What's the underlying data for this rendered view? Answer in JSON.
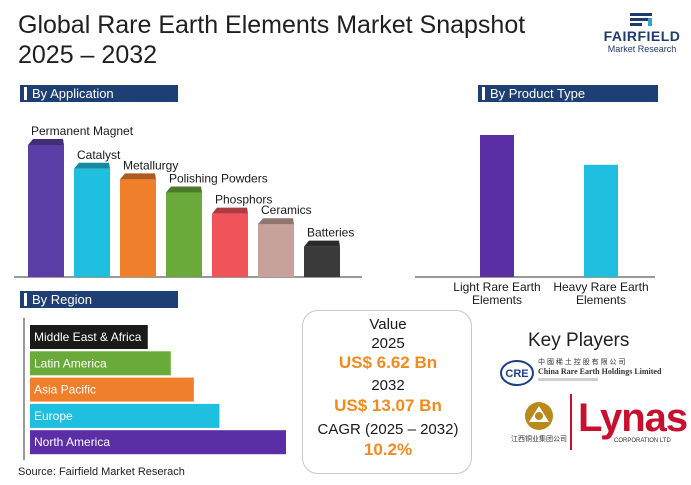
{
  "header": {
    "title_line1": "Global Rare Earth Elements Market Snapshot",
    "title_line2": "2025 – 2032",
    "logo_word": "FAIRFIELD",
    "logo_sub": "Market Research"
  },
  "sections": {
    "application": "By Application",
    "product_type": "By Product Type",
    "region": "By Region"
  },
  "chart_data": [
    {
      "type": "bar",
      "title": "By Application",
      "categories": [
        "Permanent Magnet",
        "Catalyst",
        "Metallurgy",
        "Polishing Powders",
        "Phosphors",
        "Ceramics",
        "Batteries"
      ],
      "values": [
        100,
        82,
        74,
        64,
        48,
        40,
        23
      ],
      "colors": [
        "#5a3ea6",
        "#1fbfe0",
        "#f07f2b",
        "#6aaa3a",
        "#f0535a",
        "#c7a19c",
        "#3a3a3a"
      ],
      "ylim": [
        0,
        100
      ]
    },
    {
      "type": "bar",
      "title": "By Product Type",
      "categories": [
        "Light Rare Earth Elements",
        "Heavy Rare Earth Elements"
      ],
      "values": [
        100,
        79
      ],
      "colors": [
        "#5b2ea6",
        "#1fbfe0"
      ],
      "ylim": [
        0,
        100
      ]
    },
    {
      "type": "bar",
      "orientation": "horizontal",
      "title": "By Region",
      "categories": [
        "Middle East & Africa",
        "Latin America",
        "Asia Pacific",
        "Europe",
        "North America"
      ],
      "values": [
        46,
        55,
        64,
        74,
        100
      ],
      "colors": [
        "#1a1a1a",
        "#6aaa3a",
        "#f07f2b",
        "#1fbfe0",
        "#5b2ea6"
      ],
      "ylim": [
        0,
        100
      ]
    }
  ],
  "stats": {
    "value_label": "Value",
    "year1": "2025",
    "value1": "US$ 6.62 Bn",
    "year2": "2032",
    "value2": "US$ 13.07 Bn",
    "cagr_label": "CAGR (2025 – 2032)",
    "cagr_value": "10.2%"
  },
  "key_players": {
    "title": "Key Players",
    "cre_mark": "CRE",
    "cre_cn": "中 國 稀 土 控 股 有 限 公 司",
    "cre_en": "China Rare Earth Holdings Limited",
    "jiangxi_cn": "江西铜业集团公司",
    "lynas": "Lynas",
    "lynas_sub": "CORPORATION LTD"
  },
  "footer": {
    "source": "Source: Fairfield Market Reserach"
  }
}
